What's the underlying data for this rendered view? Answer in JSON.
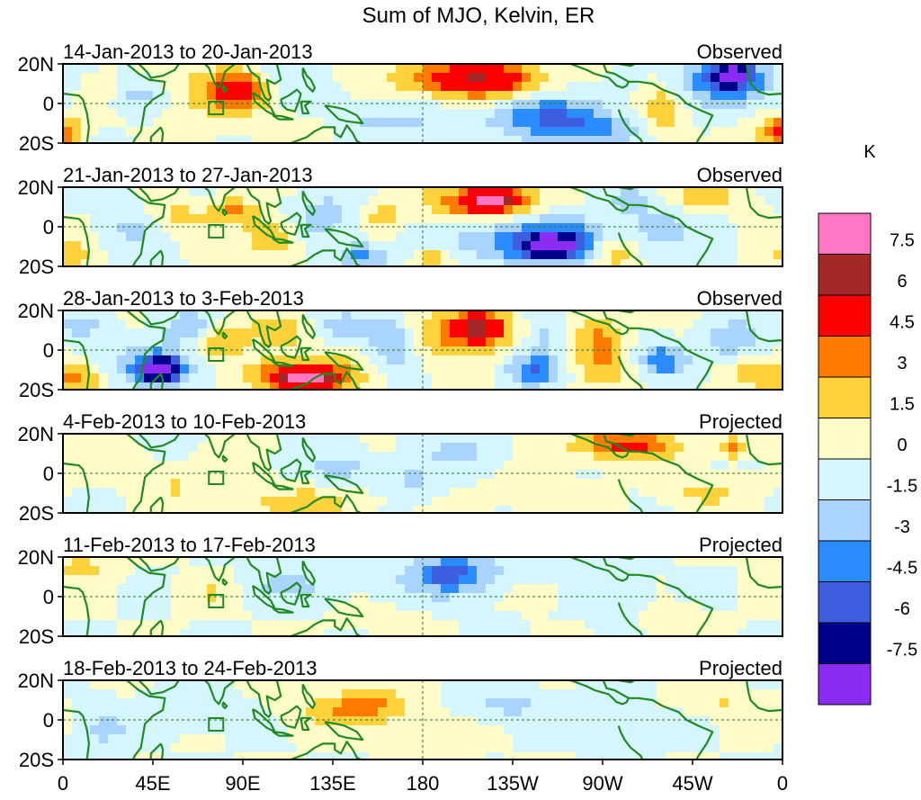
{
  "chart_data": {
    "type": "heatmap",
    "title": "Sum of MJO, Kelvin, ER",
    "units": "K",
    "x_ticks": [
      "0",
      "45E",
      "90E",
      "135E",
      "180",
      "135W",
      "90W",
      "45W",
      "0"
    ],
    "y_ticks": [
      "20N",
      "0",
      "20S"
    ],
    "ylim": [
      -20,
      20
    ],
    "xlim": [
      0,
      360
    ],
    "colorbar_levels": [
      "7.5",
      "6",
      "4.5",
      "3",
      "1.5",
      "0",
      "-1.5",
      "-3",
      "-4.5",
      "-6",
      "-7.5"
    ],
    "colorbar_colors": [
      "#ff77c4",
      "#a52828",
      "#ff0000",
      "#ff7b00",
      "#ffd23c",
      "#fffcc8",
      "#d6f6ff",
      "#a8d4ff",
      "#2a8cff",
      "#3e5ee0",
      "#00008b",
      "#8b2cf2"
    ],
    "panels": [
      {
        "dates": "14-Jan-2013 to 20-Jan-2013",
        "status": "Observed",
        "anomalies": [
          {
            "lon": 210,
            "lat": 12,
            "value": 5,
            "sx": 18,
            "sy": 6
          },
          {
            "lon": 198,
            "lat": 13,
            "value": 3,
            "sx": 28,
            "sy": 8
          },
          {
            "lon": 88,
            "lat": 8,
            "value": 4.5,
            "sx": 10,
            "sy": 6
          },
          {
            "lon": 80,
            "lat": 5,
            "value": 2.5,
            "sx": 20,
            "sy": 10
          },
          {
            "lon": 300,
            "lat": -2,
            "value": 2.5,
            "sx": 8,
            "sy": 12
          },
          {
            "lon": 355,
            "lat": -14,
            "value": 3,
            "sx": 8,
            "sy": 5
          },
          {
            "lon": 2,
            "lat": -15,
            "value": 2.5,
            "sx": 6,
            "sy": 5
          },
          {
            "lon": 335,
            "lat": 15,
            "value": -7,
            "sx": 8,
            "sy": 5
          },
          {
            "lon": 330,
            "lat": 10,
            "value": -3.5,
            "sx": 22,
            "sy": 8
          },
          {
            "lon": 240,
            "lat": -6,
            "value": -4.5,
            "sx": 18,
            "sy": 8
          },
          {
            "lon": 268,
            "lat": -14,
            "value": -3,
            "sx": 18,
            "sy": 6
          },
          {
            "lon": 160,
            "lat": -8,
            "value": -2,
            "sx": 25,
            "sy": 7
          },
          {
            "lon": 110,
            "lat": 12,
            "value": -2,
            "sx": 14,
            "sy": 8
          },
          {
            "lon": 35,
            "lat": 5,
            "value": -2.5,
            "sx": 10,
            "sy": 6
          },
          {
            "lon": 120,
            "lat": -12,
            "value": 1.5,
            "sx": 12,
            "sy": 5
          },
          {
            "lon": 20,
            "lat": 8,
            "value": 1.8,
            "sx": 10,
            "sy": 6
          }
        ]
      },
      {
        "dates": "21-Jan-2013 to 27-Jan-2013",
        "status": "Observed",
        "anomalies": [
          {
            "lon": 215,
            "lat": 14,
            "value": 7,
            "sx": 9,
            "sy": 4
          },
          {
            "lon": 210,
            "lat": 12,
            "value": 4.5,
            "sx": 20,
            "sy": 7
          },
          {
            "lon": 245,
            "lat": -10,
            "value": -6.5,
            "sx": 12,
            "sy": 5
          },
          {
            "lon": 235,
            "lat": -6,
            "value": -4,
            "sx": 28,
            "sy": 9
          },
          {
            "lon": 275,
            "lat": -14,
            "value": 3,
            "sx": 8,
            "sy": 6
          },
          {
            "lon": 282,
            "lat": 14,
            "value": -1.8,
            "sx": 10,
            "sy": 5
          },
          {
            "lon": 105,
            "lat": -5,
            "value": 3.5,
            "sx": 9,
            "sy": 6
          },
          {
            "lon": 85,
            "lat": 8,
            "value": 3.2,
            "sx": 9,
            "sy": 5
          },
          {
            "lon": 130,
            "lat": 5,
            "value": -2.5,
            "sx": 12,
            "sy": 8
          },
          {
            "lon": 150,
            "lat": -15,
            "value": -3.5,
            "sx": 10,
            "sy": 5
          },
          {
            "lon": 185,
            "lat": -17,
            "value": 3.5,
            "sx": 6,
            "sy": 4
          },
          {
            "lon": 160,
            "lat": 5,
            "value": 2,
            "sx": 8,
            "sy": 6
          },
          {
            "lon": 55,
            "lat": 5,
            "value": 2,
            "sx": 12,
            "sy": 6
          },
          {
            "lon": 35,
            "lat": 0,
            "value": -1.8,
            "sx": 10,
            "sy": 10
          },
          {
            "lon": 5,
            "lat": -15,
            "value": 2.5,
            "sx": 8,
            "sy": 5
          },
          {
            "lon": 320,
            "lat": 15,
            "value": 2,
            "sx": 15,
            "sy": 5
          },
          {
            "lon": 300,
            "lat": 0,
            "value": -2,
            "sx": 12,
            "sy": 8
          }
        ]
      },
      {
        "dates": "28-Jan-2013 to 3-Feb-2013",
        "status": "Observed",
        "anomalies": [
          {
            "lon": 122,
            "lat": -15,
            "value": 7,
            "sx": 12,
            "sy": 4
          },
          {
            "lon": 118,
            "lat": -12,
            "value": 4,
            "sx": 22,
            "sy": 7
          },
          {
            "lon": 208,
            "lat": 12,
            "value": 6.5,
            "sx": 8,
            "sy": 5
          },
          {
            "lon": 200,
            "lat": 8,
            "value": 3.5,
            "sx": 22,
            "sy": 9
          },
          {
            "lon": 48,
            "lat": -10,
            "value": -6.5,
            "sx": 8,
            "sy": 5
          },
          {
            "lon": 50,
            "lat": -8,
            "value": -3,
            "sx": 18,
            "sy": 9
          },
          {
            "lon": 78,
            "lat": 5,
            "value": 3.5,
            "sx": 10,
            "sy": 7
          },
          {
            "lon": 110,
            "lat": 10,
            "value": 2.5,
            "sx": 10,
            "sy": 6
          },
          {
            "lon": 65,
            "lat": 12,
            "value": -3,
            "sx": 10,
            "sy": 5
          },
          {
            "lon": 165,
            "lat": 5,
            "value": -3.5,
            "sx": 8,
            "sy": 10
          },
          {
            "lon": 145,
            "lat": 12,
            "value": -2.5,
            "sx": 12,
            "sy": 5
          },
          {
            "lon": 240,
            "lat": 10,
            "value": -2.5,
            "sx": 8,
            "sy": 10
          },
          {
            "lon": 235,
            "lat": -10,
            "value": -4,
            "sx": 10,
            "sy": 6
          },
          {
            "lon": 268,
            "lat": 8,
            "value": 3,
            "sx": 9,
            "sy": 8
          },
          {
            "lon": 270,
            "lat": -8,
            "value": 2.5,
            "sx": 10,
            "sy": 8
          },
          {
            "lon": 300,
            "lat": -5,
            "value": -4,
            "sx": 9,
            "sy": 6
          },
          {
            "lon": 335,
            "lat": 5,
            "value": -2.5,
            "sx": 10,
            "sy": 8
          },
          {
            "lon": 10,
            "lat": -15,
            "value": 3,
            "sx": 10,
            "sy": 5
          },
          {
            "lon": 345,
            "lat": -12,
            "value": 2,
            "sx": 12,
            "sy": 6
          },
          {
            "lon": 10,
            "lat": 12,
            "value": -2,
            "sx": 10,
            "sy": 5
          }
        ]
      },
      {
        "dates": "4-Feb-2013 to 10-Feb-2013",
        "status": "Projected",
        "anomalies": [
          {
            "lon": 285,
            "lat": 15,
            "value": 3.5,
            "sx": 15,
            "sy": 5
          },
          {
            "lon": 272,
            "lat": 14,
            "value": 2,
            "sx": 22,
            "sy": 6
          },
          {
            "lon": 335,
            "lat": 13,
            "value": 3.5,
            "sx": 6,
            "sy": 4
          },
          {
            "lon": 120,
            "lat": -15,
            "value": 2.5,
            "sx": 22,
            "sy": 5
          },
          {
            "lon": 140,
            "lat": 3,
            "value": -2,
            "sx": 12,
            "sy": 6
          },
          {
            "lon": 200,
            "lat": 12,
            "value": -1.8,
            "sx": 15,
            "sy": 6
          },
          {
            "lon": 175,
            "lat": -3,
            "value": -1.8,
            "sx": 10,
            "sy": 6
          },
          {
            "lon": 55,
            "lat": -5,
            "value": 1.5,
            "sx": 15,
            "sy": 8
          },
          {
            "lon": 320,
            "lat": -10,
            "value": 1.8,
            "sx": 14,
            "sy": 6
          },
          {
            "lon": 240,
            "lat": -12,
            "value": 1.6,
            "sx": 14,
            "sy": 5
          }
        ]
      },
      {
        "dates": "11-Feb-2013 to 17-Feb-2013",
        "status": "Projected",
        "anomalies": [
          {
            "lon": 193,
            "lat": 12,
            "value": -3.5,
            "sx": 12,
            "sy": 6
          },
          {
            "lon": 200,
            "lat": 10,
            "value": -1.8,
            "sx": 30,
            "sy": 9
          },
          {
            "lon": 10,
            "lat": 15,
            "value": 2,
            "sx": 12,
            "sy": 5
          },
          {
            "lon": 280,
            "lat": -5,
            "value": -1.8,
            "sx": 10,
            "sy": 10
          },
          {
            "lon": 300,
            "lat": -12,
            "value": 1.8,
            "sx": 12,
            "sy": 5
          },
          {
            "lon": 160,
            "lat": -12,
            "value": 1.6,
            "sx": 12,
            "sy": 4
          },
          {
            "lon": 110,
            "lat": 5,
            "value": -1.7,
            "sx": 18,
            "sy": 6
          },
          {
            "lon": 75,
            "lat": 2,
            "value": 1.6,
            "sx": 10,
            "sy": 6
          },
          {
            "lon": 235,
            "lat": 2,
            "value": 1.6,
            "sx": 10,
            "sy": 5
          }
        ]
      },
      {
        "dates": "18-Feb-2013 to 24-Feb-2013",
        "status": "Projected",
        "anomalies": [
          {
            "lon": 155,
            "lat": 8,
            "value": 2.5,
            "sx": 15,
            "sy": 6
          },
          {
            "lon": 140,
            "lat": 3,
            "value": 1.8,
            "sx": 18,
            "sy": 7
          },
          {
            "lon": 222,
            "lat": 8,
            "value": -2,
            "sx": 15,
            "sy": 6
          },
          {
            "lon": 280,
            "lat": -3,
            "value": -1.8,
            "sx": 10,
            "sy": 10
          },
          {
            "lon": 330,
            "lat": 10,
            "value": 1.6,
            "sx": 15,
            "sy": 5
          },
          {
            "lon": 60,
            "lat": 3,
            "value": -1.6,
            "sx": 15,
            "sy": 6
          },
          {
            "lon": 190,
            "lat": -12,
            "value": 1.6,
            "sx": 12,
            "sy": 5
          },
          {
            "lon": 20,
            "lat": -5,
            "value": -1.6,
            "sx": 10,
            "sy": 8
          }
        ]
      }
    ]
  }
}
